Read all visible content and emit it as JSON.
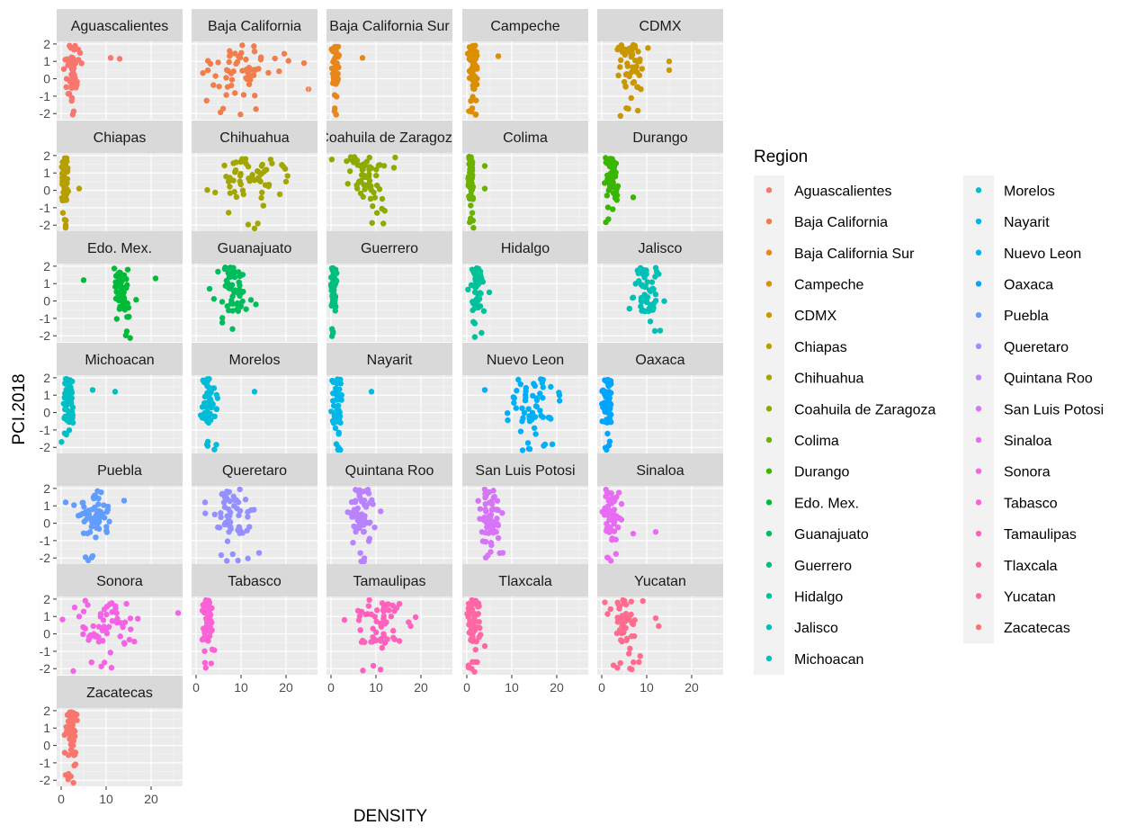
{
  "chart_data": {
    "type": "scatter",
    "facet_layout": "wrap-5-columns",
    "xlabel": "DENSITY",
    "ylabel": "PCI.2018",
    "xlim": [
      -1,
      27
    ],
    "ylim": [
      -2.35,
      2.15
    ],
    "x_ticks": [
      0,
      10,
      20
    ],
    "y_ticks": [
      2,
      1,
      0,
      -1,
      -2
    ],
    "x_tick_labels": [
      "0",
      "10",
      "20"
    ],
    "y_tick_labels": [
      "2",
      "1",
      "0",
      "-1",
      "-2"
    ],
    "panel_background": "#ebebeb",
    "strip_background": "#d9d9d9",
    "grid": true,
    "legend": {
      "title": "Region",
      "placement": "right",
      "columns": 2
    },
    "series": [
      {
        "name": "Aguascalientes",
        "color": "#F8766D",
        "x_center": 2.5,
        "x_spread": 1.6,
        "outliers": [
          [
            11,
            1.2
          ],
          [
            13,
            1.15
          ]
        ]
      },
      {
        "name": "Baja California",
        "color": "#F07E4C",
        "x_center": 10,
        "x_spread": 8.5,
        "outliers": [
          [
            24,
            0.9
          ],
          [
            25,
            -0.6
          ]
        ]
      },
      {
        "name": "Baja California Sur",
        "color": "#E7861B",
        "x_center": 1,
        "x_spread": 0.9,
        "outliers": [
          [
            7,
            1.2
          ]
        ]
      },
      {
        "name": "Campeche",
        "color": "#DA8E00",
        "x_center": 1.5,
        "x_spread": 1.2,
        "outliers": [
          [
            7,
            1.3
          ]
        ]
      },
      {
        "name": "CDMX",
        "color": "#C99700",
        "x_center": 6,
        "x_spread": 3.5,
        "outliers": [
          [
            15,
            1
          ],
          [
            15,
            0.5
          ]
        ]
      },
      {
        "name": "Chiapas",
        "color": "#B79F00",
        "x_center": 0.8,
        "x_spread": 0.8,
        "outliers": [
          [
            4,
            0.1
          ]
        ]
      },
      {
        "name": "Chihuahua",
        "color": "#A3A500",
        "x_center": 11,
        "x_spread": 8.5,
        "outliers": [
          [
            20,
            0.5
          ]
        ]
      },
      {
        "name": "Coahuila de Zaragoza",
        "color": "#8BAB00",
        "x_center": 8,
        "x_spread": 5.5,
        "outliers": [
          [
            14,
            1.3
          ]
        ]
      },
      {
        "name": "Colima",
        "color": "#6BB100",
        "x_center": 0.9,
        "x_spread": 0.7,
        "outliers": [
          [
            4,
            1.4
          ],
          [
            4,
            0.1
          ]
        ]
      },
      {
        "name": "Durango",
        "color": "#39B600",
        "x_center": 2.2,
        "x_spread": 1.4,
        "outliers": [
          [
            7,
            -0.4
          ]
        ]
      },
      {
        "name": "Edo. Mex.",
        "color": "#00BA38",
        "x_center": 13.5,
        "x_spread": 2.2,
        "outliers": [
          [
            5,
            1.2
          ],
          [
            21,
            1.3
          ]
        ]
      },
      {
        "name": "Guanajuato",
        "color": "#00BD5C",
        "x_center": 8,
        "x_spread": 4,
        "outliers": [
          [
            3,
            0.7
          ]
        ]
      },
      {
        "name": "Guerrero",
        "color": "#00BF7D",
        "x_center": 0.6,
        "x_spread": 0.6,
        "outliers": []
      },
      {
        "name": "Hidalgo",
        "color": "#00C19A",
        "x_center": 2.2,
        "x_spread": 1.6,
        "outliers": [
          [
            5,
            0.5
          ]
        ]
      },
      {
        "name": "Jalisco",
        "color": "#00C0B5",
        "x_center": 10,
        "x_spread": 3,
        "outliers": [
          [
            7,
            0.2
          ],
          [
            13,
            -1.7
          ]
        ]
      },
      {
        "name": "Michoacan",
        "color": "#00BFC4",
        "x_center": 1.5,
        "x_spread": 1.4,
        "outliers": [
          [
            7,
            1.3
          ],
          [
            12,
            1.2
          ]
        ]
      },
      {
        "name": "Morelos",
        "color": "#00BCD8",
        "x_center": 3,
        "x_spread": 2,
        "outliers": [
          [
            13,
            1.2
          ]
        ]
      },
      {
        "name": "Nayarit",
        "color": "#00B8E7",
        "x_center": 1.5,
        "x_spread": 1.4,
        "outliers": [
          [
            9,
            1.2
          ]
        ]
      },
      {
        "name": "Nuevo Leon",
        "color": "#00B0F6",
        "x_center": 15,
        "x_spread": 6,
        "outliers": [
          [
            4,
            1.3
          ],
          [
            14,
            -2.1
          ]
        ]
      },
      {
        "name": "Oaxaca",
        "color": "#00A5FF",
        "x_center": 1.3,
        "x_spread": 1.2,
        "outliers": []
      },
      {
        "name": "Puebla",
        "color": "#619CFF",
        "x_center": 7,
        "x_spread": 4.5,
        "outliers": [
          [
            1,
            1.2
          ],
          [
            14,
            1.3
          ]
        ]
      },
      {
        "name": "Queretaro",
        "color": "#9590FF",
        "x_center": 8,
        "x_spread": 5,
        "outliers": [
          [
            2,
            1.2
          ]
        ]
      },
      {
        "name": "Quintana Roo",
        "color": "#B983FF",
        "x_center": 7,
        "x_spread": 3.5,
        "outliers": []
      },
      {
        "name": "San Luis Potosi",
        "color": "#D675F7",
        "x_center": 5,
        "x_spread": 3,
        "outliers": [
          [
            8,
            -1.7
          ]
        ]
      },
      {
        "name": "Sinaloa",
        "color": "#E76BF3",
        "x_center": 2,
        "x_spread": 2,
        "outliers": [
          [
            12,
            -0.5
          ],
          [
            7,
            -0.6
          ]
        ]
      },
      {
        "name": "Sonora",
        "color": "#F463E6",
        "x_center": 9,
        "x_spread": 7.5,
        "outliers": [
          [
            26,
            1.2
          ]
        ]
      },
      {
        "name": "Tabasco",
        "color": "#FC61D5",
        "x_center": 2.5,
        "x_spread": 1.4,
        "outliers": []
      },
      {
        "name": "Tamaulipas",
        "color": "#FF62BC",
        "x_center": 11,
        "x_spread": 6.5,
        "outliers": [
          [
            3,
            0.8
          ]
        ]
      },
      {
        "name": "Tlaxcala",
        "color": "#FF67A4",
        "x_center": 1.5,
        "x_spread": 1.4,
        "outliers": [
          [
            4,
            -0.7
          ]
        ]
      },
      {
        "name": "Yucatan",
        "color": "#FF6C90",
        "x_center": 5.5,
        "x_spread": 4.5,
        "outliers": [
          [
            12,
            0.9
          ]
        ]
      },
      {
        "name": "Zacatecas",
        "color": "#F8766D",
        "x_center": 2.2,
        "x_spread": 1.5,
        "outliers": [
          [
            1,
            -1.7
          ]
        ]
      }
    ]
  }
}
